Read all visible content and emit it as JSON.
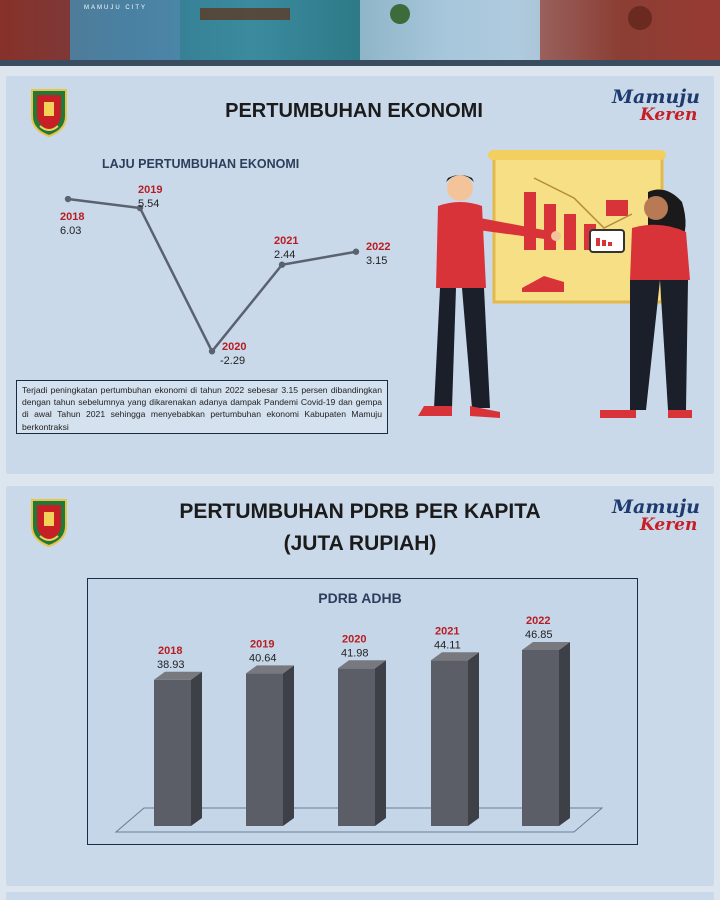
{
  "banner": {
    "caption": "MAMUJU CITY"
  },
  "brand": {
    "line1": "Mamuju",
    "line2": "Keren"
  },
  "section1": {
    "title": "PERTUMBUHAN EKONOMI",
    "note": "Terjadi peningkatan pertumbuhan ekonomi di tahun 2022 sebesar 3.15 persen dibandingkan dengan tahun sebelumnya yang dikarenakan adanya dampak Pandemi Covid-19 dan gempa di awal Tahun 2021 sehingga menyebabkan pertumbuhan ekonomi Kabupaten Mamuju berkontraksi"
  },
  "section2": {
    "title_line1": "PERTUMBUHAN PDRB PER KAPITA",
    "title_line2": "(JUTA RUPIAH)"
  },
  "colors": {
    "year_label": "#b81d22",
    "line": "#5a6270",
    "bar_front": "#5b5e66",
    "bar_side": "#3e4047",
    "bar_top": "#77797f"
  },
  "chart_data": [
    {
      "type": "line",
      "title": "LAJU PERTUMBUHAN EKONOMI",
      "categories": [
        "2018",
        "2019",
        "2020",
        "2021",
        "2022"
      ],
      "values": [
        6.03,
        5.54,
        -2.29,
        2.44,
        3.15
      ],
      "labels": [
        "6.03",
        "5.54",
        "-2.29",
        "2.44",
        "3.15"
      ],
      "grid": false
    },
    {
      "type": "bar",
      "title": "PDRB ADHB",
      "categories": [
        "2018",
        "2019",
        "2020",
        "2021",
        "2022"
      ],
      "values": [
        38.93,
        40.64,
        41.98,
        44.11,
        46.85
      ],
      "labels": [
        "38.93",
        "40.64",
        "41.98",
        "44.11",
        "46.85"
      ],
      "grid": false
    }
  ]
}
